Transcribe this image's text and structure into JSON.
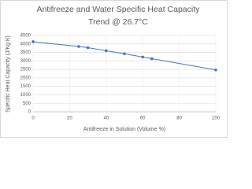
{
  "chart_data": {
    "type": "line",
    "title": [
      "Antifreeze and Water Specific Heat Capacity",
      "Trend @ 26.7°C"
    ],
    "x_label": "Antifreeze  in Solution (Volume %)",
    "y_label": "Specific Heat Capacity (J/Kg K)",
    "x": [
      0,
      25,
      30,
      40,
      50,
      60,
      65,
      100
    ],
    "series": [
      {
        "name": "Specific Heat Capacity",
        "color": "#4472c4",
        "values": [
          4130,
          3850,
          3780,
          3600,
          3420,
          3230,
          3130,
          2470
        ]
      }
    ],
    "xlim": [
      0,
      100
    ],
    "xticks": [
      0,
      20,
      40,
      60,
      80,
      100
    ],
    "ylim": [
      0,
      4500
    ],
    "yticks": [
      0,
      500,
      1000,
      1500,
      2000,
      2500,
      3000,
      3500,
      4000,
      4500
    ],
    "grid": true,
    "markers": true
  }
}
